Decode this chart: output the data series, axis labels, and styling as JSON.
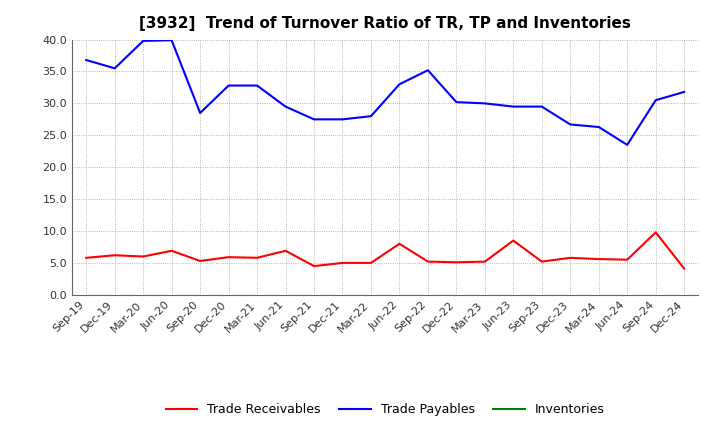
{
  "title": "[3932]  Trend of Turnover Ratio of TR, TP and Inventories",
  "x_labels": [
    "Sep-19",
    "Dec-19",
    "Mar-20",
    "Jun-20",
    "Sep-20",
    "Dec-20",
    "Mar-21",
    "Jun-21",
    "Sep-21",
    "Dec-21",
    "Mar-22",
    "Jun-22",
    "Sep-22",
    "Dec-22",
    "Mar-23",
    "Jun-23",
    "Sep-23",
    "Dec-23",
    "Mar-24",
    "Jun-24",
    "Sep-24",
    "Dec-24"
  ],
  "trade_receivables": [
    5.8,
    6.2,
    6.0,
    6.9,
    5.3,
    5.9,
    5.8,
    6.9,
    4.5,
    5.0,
    5.0,
    8.0,
    5.2,
    5.1,
    5.2,
    8.5,
    5.2,
    5.8,
    5.6,
    5.5,
    9.8,
    4.1
  ],
  "trade_payables": [
    36.8,
    35.5,
    39.8,
    39.9,
    28.5,
    32.8,
    32.8,
    29.5,
    27.5,
    27.5,
    28.0,
    33.0,
    35.2,
    30.2,
    30.0,
    29.5,
    29.5,
    26.7,
    26.3,
    23.5,
    30.5,
    31.8
  ],
  "inventories": [
    null,
    null,
    null,
    null,
    null,
    null,
    null,
    null,
    null,
    null,
    null,
    null,
    null,
    null,
    null,
    null,
    null,
    null,
    null,
    null,
    null,
    null
  ],
  "ylim": [
    0,
    40
  ],
  "yticks": [
    0.0,
    5.0,
    10.0,
    15.0,
    20.0,
    25.0,
    30.0,
    35.0,
    40.0
  ],
  "tr_color": "#ff0000",
  "tp_color": "#0000ff",
  "inv_color": "#008000",
  "legend_tr": "Trade Receivables",
  "legend_tp": "Trade Payables",
  "legend_inv": "Inventories",
  "background_color": "#ffffff",
  "grid_color": "#888888",
  "title_fontsize": 11,
  "axis_fontsize": 8,
  "legend_fontsize": 9,
  "tick_color": "#333333"
}
